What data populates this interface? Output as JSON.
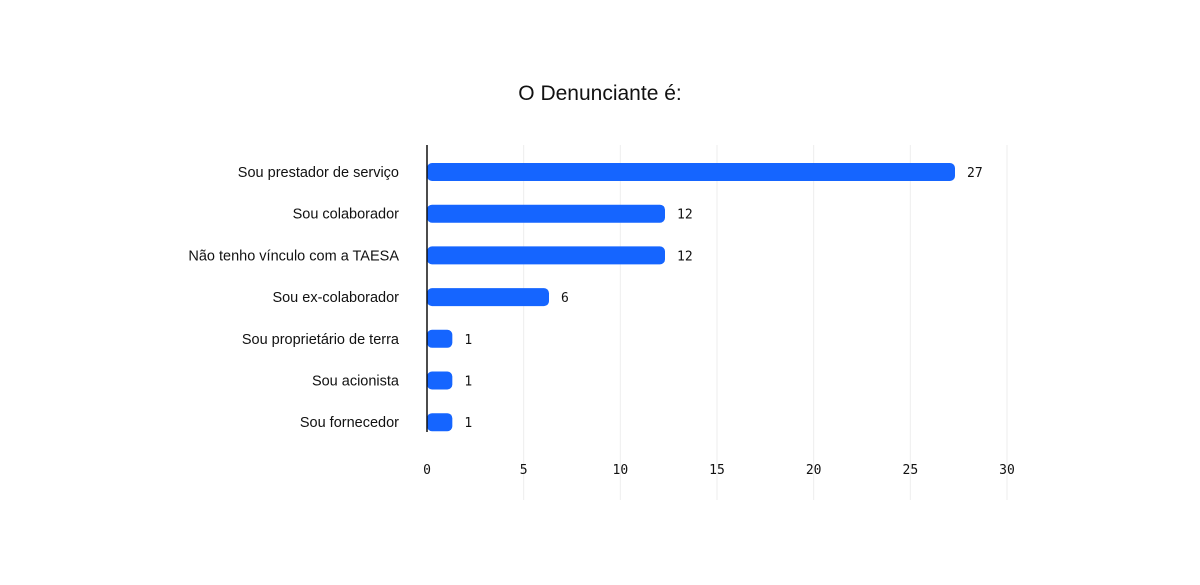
{
  "chart_data": {
    "type": "bar",
    "orientation": "horizontal",
    "title": "O Denunciante é:",
    "xlabel": "",
    "ylabel": "",
    "categories": [
      "Sou prestador de serviço",
      "Sou colaborador",
      "Não tenho vínculo com a TAESA",
      "Sou ex-colaborador",
      "Sou proprietário de terra",
      "Sou acionista",
      "Sou fornecedor"
    ],
    "values": [
      27,
      12,
      12,
      6,
      1,
      1,
      1
    ],
    "xlim": [
      0,
      30
    ],
    "xticks": [
      0,
      5,
      10,
      15,
      20,
      25,
      30
    ],
    "grid": true,
    "bar_color": "#1565ff"
  }
}
